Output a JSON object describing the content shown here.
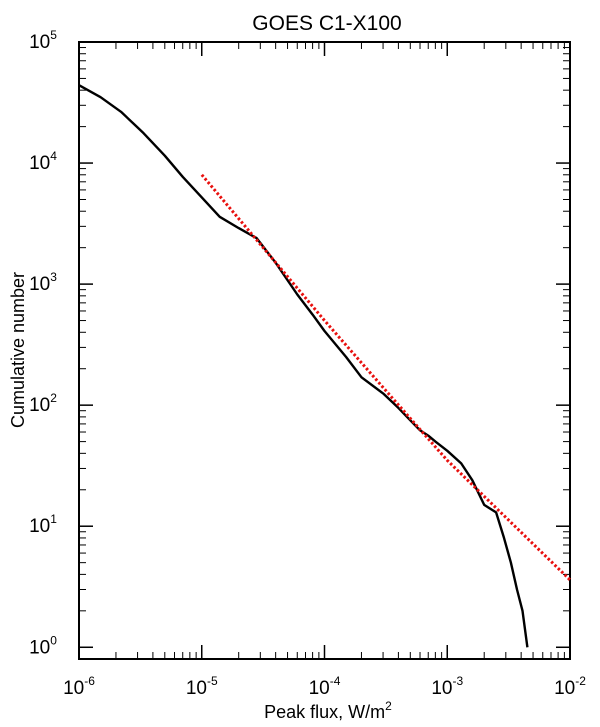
{
  "chart_data": {
    "type": "line",
    "title": "GOES C1-X100",
    "xlabel": "Peak flux, W/m",
    "xlabel_superscript": "2",
    "ylabel": "Cumulative number",
    "xscale": "log",
    "yscale": "log",
    "xlim": [
      1e-06,
      0.01
    ],
    "ylim": [
      0.8,
      100000
    ],
    "x_ticks": [
      {
        "base": "10",
        "exp": "-6",
        "value": 1e-06
      },
      {
        "base": "10",
        "exp": "-5",
        "value": 1e-05
      },
      {
        "base": "10",
        "exp": "-4",
        "value": 0.0001
      },
      {
        "base": "10",
        "exp": "-3",
        "value": 0.001
      },
      {
        "base": "10",
        "exp": "-2",
        "value": 0.01
      }
    ],
    "y_ticks": [
      {
        "base": "10",
        "exp": "0",
        "value": 1
      },
      {
        "base": "10",
        "exp": "1",
        "value": 10
      },
      {
        "base": "10",
        "exp": "2",
        "value": 100
      },
      {
        "base": "10",
        "exp": "3",
        "value": 1000
      },
      {
        "base": "10",
        "exp": "4",
        "value": 10000
      },
      {
        "base": "10",
        "exp": "5",
        "value": 100000
      }
    ],
    "grid": false,
    "series": [
      {
        "style": "solid",
        "color": "#000000",
        "x": [
          1e-06,
          1.5e-06,
          2.2e-06,
          3.3e-06,
          5e-06,
          7e-06,
          1e-05,
          1.4e-05,
          2e-05,
          2.8e-05,
          4e-05,
          6e-05,
          8e-05,
          0.0001,
          0.00015,
          0.0002,
          0.0003,
          0.0004,
          0.0005,
          0.0006,
          0.0007,
          0.0008,
          0.001,
          0.0013,
          0.0016,
          0.002,
          0.0025,
          0.0029,
          0.0033,
          0.0037,
          0.0041,
          0.0045
        ],
        "y": [
          44000,
          35000,
          26500,
          18000,
          11500,
          7700,
          5200,
          3600,
          2900,
          2400,
          1500,
          820,
          560,
          410,
          250,
          170,
          125,
          95,
          75,
          62,
          56,
          50,
          42,
          33,
          24,
          15,
          13,
          8,
          5,
          3,
          2,
          1
        ]
      },
      {
        "style": "dotted",
        "color": "#e8100e",
        "x": [
          1e-05,
          0.0001,
          0.0003,
          0.001,
          0.01
        ],
        "y": [
          8000,
          500,
          140,
          35,
          3.6
        ]
      }
    ]
  }
}
